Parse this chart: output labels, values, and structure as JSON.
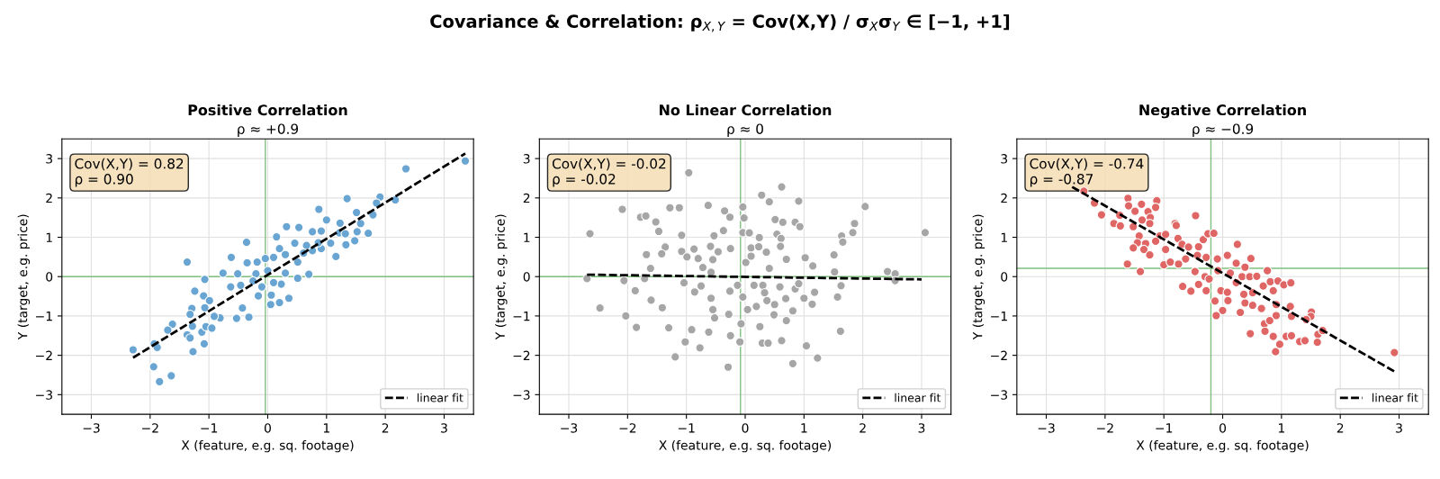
{
  "chart_data": [
    {
      "type": "other",
      "title": "Covariance & Correlation: ρ$_{X,Y}$ = Cov(X,Y) / σ$_{X}$σ$_{Y}$ ∈ [−1, +1]"
    },
    {
      "type": "scatter",
      "title": "Positive Correlation",
      "subtitle": "ρ ≈ +0.9",
      "xlabel": "X (feature, e.g. sq. footage)",
      "ylabel": "Y (target, e.g. price)",
      "annotations": [
        "Cov(X,Y) = 0.82\nρ = 0.90"
      ],
      "xlim": [
        -3.5,
        3.5
      ],
      "ylim": [
        -3.5,
        3.5
      ],
      "xticks": [
        -3,
        -2,
        -1,
        0,
        1,
        2,
        3
      ],
      "yticks": [
        -3,
        -2,
        -1,
        0,
        1,
        2,
        3
      ],
      "grid": true,
      "legend": "bottom right",
      "ref_lines": [
        {
          "axis": "x",
          "value": -0.04,
          "color": "#7fbf7f"
        },
        {
          "axis": "y",
          "value": 0.0,
          "color": "#7fbf7f"
        }
      ],
      "series": [
        {
          "type": "scatter",
          "color": "#69a5d2",
          "marker": "circle",
          "x": [
            3.36,
            2.35,
            1.35,
            1.91,
            2.17,
            0.87,
            1.85,
            1.51,
            1.79,
            1.0,
            1.23,
            0.32,
            0.53,
            1.58,
            1.71,
            1.52,
            1.22,
            1.48,
            1.33,
            0.15,
            0.76,
            0.91,
            1.07,
            1.16,
            0.91,
            0.76,
            0.66,
            0.46,
            0.2,
            -0.36,
            -0.62,
            -1.37,
            -0.35,
            -0.18,
            -0.04,
            0.1,
            0.3,
            0.51,
            0.7,
            0.51,
            0.36,
            0.2,
            0.23,
            0.06,
            0.05,
            -0.16,
            -0.32,
            -0.43,
            -0.53,
            -0.81,
            -1.07,
            -0.76,
            -0.51,
            -1.24,
            -1.09,
            -0.99,
            -1.29,
            -1.32,
            -1.07,
            -0.91,
            -1.62,
            -1.7,
            -1.37,
            -1.32,
            -1.12,
            -1.05,
            -0.95,
            -1.28,
            -1.27,
            -1.08,
            -1.93,
            -1.88,
            -2.29,
            -1.94,
            -1.84,
            -1.64,
            -0.2,
            0.0,
            -0.25,
            -0.63,
            -0.46,
            -0.1,
            0.1,
            0.3,
            0.61,
            0.86,
            1.32
          ],
          "values": [
            2.94,
            2.74,
            1.98,
            2.02,
            1.95,
            1.71,
            1.87,
            1.63,
            1.57,
            1.44,
            1.36,
            1.27,
            1.25,
            1.35,
            1.1,
            1.14,
            1.11,
            0.91,
            0.81,
            1.01,
            1.14,
            1.16,
            0.85,
            0.51,
            0.71,
            0.66,
            0.79,
            0.85,
            0.71,
            0.87,
            0.49,
            0.37,
            0.35,
            0.37,
            0.46,
            0.49,
            0.56,
            0.37,
            0.06,
            -0.04,
            -0.55,
            -0.66,
            -0.19,
            -0.47,
            -0.71,
            -0.49,
            -1.03,
            -0.8,
            -1.06,
            -1.05,
            -0.07,
            0.09,
            0.07,
            -0.37,
            -0.49,
            -0.61,
            -0.81,
            -0.96,
            -0.79,
            -1.01,
            -1.21,
            -1.36,
            -1.48,
            -1.56,
            -1.41,
            -1.27,
            -1.31,
            -1.26,
            -1.91,
            -1.71,
            -1.71,
            -1.8,
            -1.86,
            -2.29,
            -2.67,
            -2.52,
            0.07,
            0.15,
            -0.11,
            -0.26,
            -0.22,
            -0.26,
            -0.15,
            0.09,
            0.6,
            0.86,
            1.09
          ]
        },
        {
          "type": "line",
          "name": "linear fit",
          "color": "#000000",
          "line_style": "dashed",
          "marker": "none",
          "x": [
            -2.29,
            3.36
          ],
          "values": [
            -2.06,
            3.13
          ]
        }
      ]
    },
    {
      "type": "scatter",
      "title": "No Linear Correlation",
      "subtitle": "ρ ≈ 0",
      "xlabel": "X (feature, e.g. sq. footage)",
      "ylabel": "Y (target, e.g. price)",
      "annotations": [
        "Cov(X,Y) = -0.02\nρ = -0.02"
      ],
      "xlim": [
        -3.5,
        3.5
      ],
      "ylim": [
        -3.5,
        3.5
      ],
      "xticks": [
        -3,
        -2,
        -1,
        0,
        1,
        2,
        3
      ],
      "yticks": [
        -3,
        -2,
        -1,
        0,
        1,
        2,
        3
      ],
      "grid": true,
      "legend": "bottom right",
      "ref_lines": [
        {
          "axis": "x",
          "value": -0.08,
          "color": "#7fbf7f"
        },
        {
          "axis": "y",
          "value": 0.0,
          "color": "#7fbf7f"
        }
      ],
      "series": [
        {
          "type": "scatter",
          "color": "#a6a6a6",
          "marker": "circle",
          "x": [
            -0.96,
            0.62,
            0.28,
            0.41,
            0.91,
            2.04,
            -2.09,
            -1.28,
            -1.12,
            -0.63,
            -0.04,
            -0.35,
            -0.26,
            -0.02,
            -1.78,
            -1.69,
            -1.52,
            -1.47,
            0.51,
            0.64,
            0.85,
            0.93,
            1.86,
            1.83,
            1.64,
            1.66,
            3.06,
            -2.64,
            -1.08,
            -0.53,
            -0.37,
            -0.04,
            0.07,
            0.24,
            0.54,
            0.61,
            -1.36,
            -1.68,
            -1.42,
            -1.08,
            -0.99,
            -0.87,
            -0.59,
            -0.46,
            -0.55,
            -0.8,
            -0.25,
            0.1,
            0.23,
            0.36,
            0.6,
            0.01,
            0.1,
            0.41,
            0.7,
            1.02,
            1.51,
            1.15,
            1.52,
            2.42,
            2.55,
            -1.61,
            -0.72,
            -0.58,
            -2.69,
            -2.06,
            -1.71,
            -1.04,
            -0.75,
            -1.87,
            -0.86,
            -1.6,
            -1.41,
            -2.47,
            -2.03,
            -1.85,
            -1.3,
            -1.02,
            -1.19,
            -0.77,
            -0.91,
            -0.62,
            -0.58,
            -0.55,
            -0.52,
            -0.26,
            -0.13,
            -0.04,
            -0.28,
            -0.25,
            -0.29,
            -0.09,
            -0.07,
            0.04,
            0.19,
            0.15,
            0.3,
            0.33,
            0.37,
            0.5,
            0.49,
            0.25,
            0.29,
            0.39,
            0.62,
            0.7,
            0.81,
            0.59,
            0.69,
            0.85,
            0.91,
            1.0,
            1.18,
            1.14,
            1.04,
            0.81,
            1.23,
            1.57,
            1.63,
            1.62,
            2.55
          ],
          "values": [
            2.64,
            2.28,
            2.07,
            1.9,
            1.92,
            1.78,
            1.71,
            1.75,
            1.75,
            1.81,
            1.77,
            1.67,
            1.51,
            1.49,
            1.51,
            1.54,
            1.39,
            1.15,
            1.45,
            1.38,
            1.38,
            1.27,
            1.35,
            1.12,
            1.03,
            0.88,
            1.12,
            1.09,
            1.05,
            1.04,
            1.17,
            1.12,
            1.11,
            0.99,
            1.08,
            0.97,
            0.75,
            0.56,
            0.58,
            0.64,
            0.5,
            0.7,
            0.77,
            0.63,
            0.43,
            0.46,
            0.71,
            0.73,
            0.76,
            0.62,
            0.77,
            0.36,
            0.52,
            0.21,
            0.44,
            0.48,
            0.55,
            0.27,
            0.12,
            0.13,
            0.07,
            0.21,
            0.23,
            0.11,
            -0.05,
            -0.1,
            -0.05,
            -0.16,
            -0.24,
            -0.36,
            -0.39,
            -0.6,
            -0.79,
            -0.8,
            -1.0,
            -1.29,
            -1.3,
            -1.66,
            -2.04,
            -1.81,
            -1.35,
            -1.41,
            -0.55,
            -0.84,
            -1.05,
            -0.37,
            -0.22,
            -0.52,
            -0.96,
            -1.5,
            -2.3,
            -1.66,
            -1.2,
            -0.84,
            -0.76,
            -0.22,
            -0.22,
            -0.41,
            -0.61,
            -0.71,
            -0.97,
            -1.27,
            -1.69,
            -1.69,
            -1.63,
            -1.12,
            -0.87,
            -0.26,
            -0.56,
            -0.31,
            -0.18,
            -0.55,
            -0.4,
            -0.7,
            -1.76,
            -2.21,
            -2.07,
            -0.52,
            -0.23,
            -1.39,
            -0.1
          ]
        },
        {
          "type": "line",
          "name": "linear fit",
          "color": "#000000",
          "line_style": "dashed",
          "marker": "none",
          "x": [
            -2.69,
            3.0
          ],
          "values": [
            0.05,
            -0.07
          ]
        }
      ]
    },
    {
      "type": "scatter",
      "title": "Negative Correlation",
      "subtitle": "ρ ≈ −0.9",
      "xlabel": "X (feature, e.g. sq. footage)",
      "ylabel": "Y (target, e.g. price)",
      "annotations": [
        "Cov(X,Y) = -0.74\nρ = -0.87"
      ],
      "xlim": [
        -3.5,
        3.5
      ],
      "ylim": [
        -3.5,
        3.5
      ],
      "xticks": [
        -3,
        -2,
        -1,
        0,
        1,
        2,
        3
      ],
      "yticks": [
        -3,
        -2,
        -1,
        0,
        1,
        2,
        3
      ],
      "grid": true,
      "legend": "bottom right",
      "ref_lines": [
        {
          "axis": "x",
          "value": -0.2,
          "color": "#7fbf7f"
        },
        {
          "axis": "y",
          "value": 0.21,
          "color": "#7fbf7f"
        }
      ],
      "series": [
        {
          "type": "scatter",
          "color": "#e06666",
          "marker": "circle",
          "x": [
            -2.36,
            -2.18,
            -2.06,
            -1.61,
            -1.6,
            -1.49,
            -1.38,
            -1.27,
            -1.12,
            -1.14,
            -1.23,
            -1.37,
            -1.75,
            -1.85,
            -1.74,
            -1.52,
            -1.24,
            -0.46,
            -0.81,
            -0.79,
            -1.42,
            -1.07,
            -0.97,
            -0.76,
            -1.14,
            -1.45,
            -1.31,
            -1.52,
            -1.34,
            -1.24,
            -0.97,
            -0.69,
            -0.58,
            -0.41,
            -0.33,
            -0.25,
            -0.15,
            0.25,
            -1.62,
            -1.4,
            -1.0,
            -0.89,
            -0.75,
            -0.63,
            -0.43,
            -0.28,
            -0.09,
            0.08,
            0.48,
            0.23,
            0.38,
            -0.47,
            -0.3,
            -0.23,
            -0.08,
            0.13,
            0.33,
            0.46,
            0.58,
            0.76,
            -0.68,
            -0.54,
            -0.41,
            -0.28,
            -0.03,
            0.08,
            0.23,
            0.36,
            0.51,
            0.69,
            0.81,
            0.94,
            1.04,
            1.16,
            0.86,
            -0.13,
            0.09,
            0.38,
            0.51,
            0.66,
            0.91,
            1.15,
            0.0,
            -0.11,
            0.3,
            0.91,
            1.17,
            1.51,
            1.5,
            1.42,
            0.71,
            0.8,
            0.47,
            0.72,
            0.86,
            1.08,
            1.17,
            1.31,
            1.4,
            1.62,
            1.7,
            1.61,
            0.97,
            0.9,
            2.92
          ],
          "values": [
            2.17,
            1.87,
            1.57,
            1.99,
            1.8,
            1.66,
            1.84,
            1.65,
            1.93,
            1.76,
            1.5,
            1.44,
            1.56,
            1.35,
            1.29,
            1.27,
            1.35,
            1.55,
            1.35,
            1.3,
            1.03,
            1.03,
            1.07,
            0.97,
            0.9,
            0.86,
            0.84,
            0.73,
            0.69,
            0.55,
            0.69,
            0.82,
            0.75,
            0.76,
            0.94,
            1.09,
            1.1,
            0.82,
            0.32,
            0.13,
            0.3,
            0.37,
            0.32,
            0.45,
            0.54,
            0.49,
            0.45,
            0.54,
            0.46,
            0.34,
            0.24,
            0.13,
            0.0,
            -0.06,
            0.15,
            0.09,
            0.0,
            0.0,
            0.01,
            0.15,
            -0.25,
            -0.37,
            -0.2,
            -0.36,
            -0.36,
            -0.4,
            -0.15,
            -0.45,
            -0.41,
            -0.24,
            -0.13,
            -0.11,
            -0.21,
            -0.16,
            -0.36,
            -0.62,
            -0.61,
            -0.67,
            -0.73,
            -0.81,
            -0.71,
            -0.76,
            -0.86,
            -0.99,
            -0.91,
            -0.99,
            -1.01,
            -0.9,
            -1.01,
            -1.09,
            -1.2,
            -1.12,
            -1.45,
            -1.39,
            -1.52,
            -1.52,
            -1.5,
            -1.65,
            -1.63,
            -1.47,
            -1.37,
            -1.67,
            -1.72,
            -1.91,
            -1.93
          ]
        },
        {
          "type": "line",
          "name": "linear fit",
          "color": "#000000",
          "line_style": "dashed",
          "marker": "none",
          "x": [
            -2.56,
            2.92
          ],
          "values": [
            2.28,
            -2.41
          ]
        }
      ]
    }
  ]
}
